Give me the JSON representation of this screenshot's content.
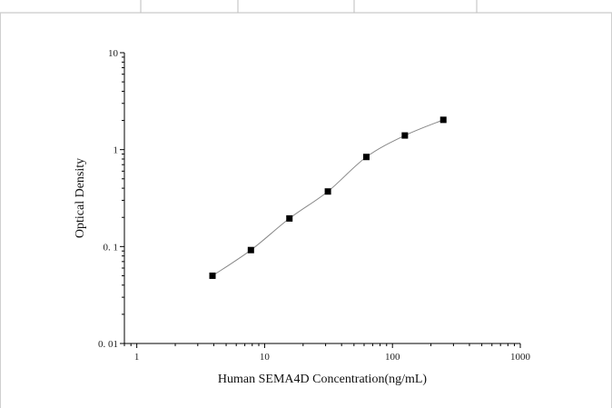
{
  "chart_data": {
    "type": "scatter",
    "xlabel": "Human SEMA4D Concentration(ng/mL)",
    "ylabel": "Optical Density",
    "x_scale": "log",
    "y_scale": "log",
    "xlim": [
      0.8,
      1000
    ],
    "ylim": [
      0.01,
      10
    ],
    "x_ticks": [
      {
        "value": 1,
        "label": "1"
      },
      {
        "value": 10,
        "label": "10"
      },
      {
        "value": 100,
        "label": "100"
      },
      {
        "value": 1000,
        "label": "1000"
      }
    ],
    "y_ticks": [
      {
        "value": 10,
        "label": "10"
      },
      {
        "value": 1,
        "label": "1"
      },
      {
        "value": 0.1,
        "label": "0. 1"
      },
      {
        "value": 0.01,
        "label": "0. 01"
      }
    ],
    "grid": false,
    "series": [
      {
        "points": [
          {
            "x": 3.91,
            "y": 0.05
          },
          {
            "x": 7.81,
            "y": 0.092
          },
          {
            "x": 15.63,
            "y": 0.195
          },
          {
            "x": 31.25,
            "y": 0.37
          },
          {
            "x": 62.5,
            "y": 0.84
          },
          {
            "x": 125,
            "y": 1.4
          },
          {
            "x": 250,
            "y": 2.03
          }
        ],
        "marker": "square",
        "fit_line": true,
        "marker_color": "#000000",
        "line_color": "#888888"
      }
    ]
  }
}
